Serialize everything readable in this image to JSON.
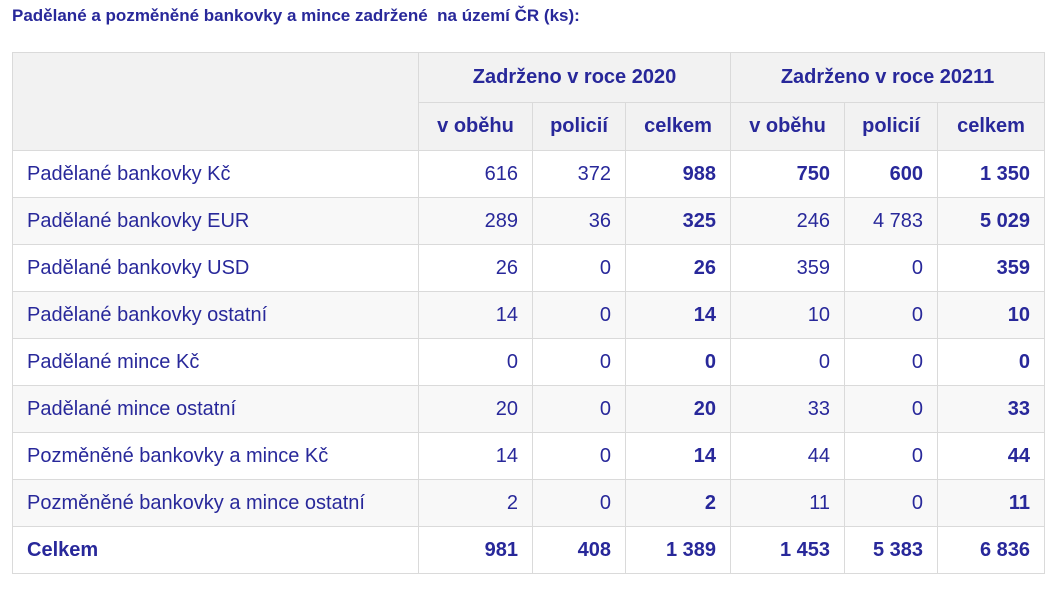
{
  "title": "Padělané a pozměněné bankovky a mince zadržené  na území ČR (ks):",
  "header": {
    "group_2020": "Zadrženo v roce 2020",
    "group_2021": "Zadrženo v roce 20211",
    "sub": [
      "v oběhu",
      "policií",
      "celkem",
      "v oběhu",
      "policií",
      "celkem"
    ]
  },
  "rows": [
    {
      "label": "Padělané bankovky Kč",
      "values": [
        "616",
        "372",
        "988",
        "750",
        "600",
        "1 350"
      ]
    },
    {
      "label": "Padělané bankovky EUR",
      "values": [
        "289",
        "36",
        "325",
        "246",
        "4 783",
        "5 029"
      ]
    },
    {
      "label": "Padělané bankovky USD",
      "values": [
        "26",
        "0",
        "26",
        "359",
        "0",
        "359"
      ]
    },
    {
      "label": "Padělané bankovky ostatní",
      "values": [
        "14",
        "0",
        "14",
        "10",
        "0",
        "10"
      ]
    },
    {
      "label": "Padělané mince Kč",
      "values": [
        "0",
        "0",
        "0",
        "0",
        "0",
        "0"
      ]
    },
    {
      "label": "Padělané mince ostatní",
      "values": [
        "20",
        "0",
        "20",
        "33",
        "0",
        "33"
      ]
    },
    {
      "label": "Pozměněné bankovky a mince Kč",
      "values": [
        "14",
        "0",
        "14",
        "44",
        "0",
        "44"
      ]
    },
    {
      "label": "Pozměněné bankovky a mince ostatní",
      "values": [
        "2",
        "0",
        "2",
        "11",
        "0",
        "11"
      ]
    }
  ],
  "total": {
    "label": "Celkem",
    "values": [
      "981",
      "408",
      "1 389",
      "1 453",
      "5 383",
      "6 836"
    ]
  },
  "colors": {
    "text": "#28289a",
    "header_bg": "#f2f2f2",
    "border": "#dadada",
    "stripe_bg": "#f8f8f8"
  }
}
